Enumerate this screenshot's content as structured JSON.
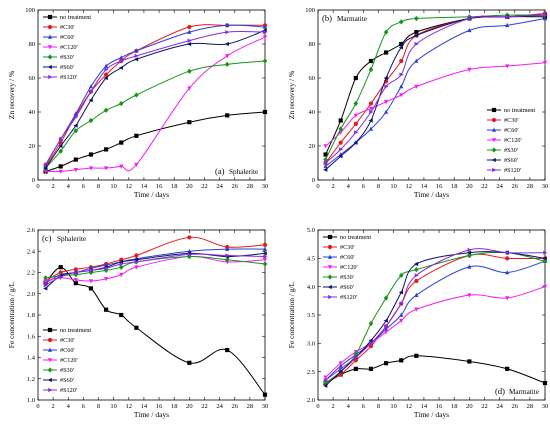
{
  "figure": {
    "panels": [
      {
        "id": "a",
        "label": "(a)",
        "mineral": "Sphalerite",
        "mineral_pos": "bottom-right",
        "legend_pos": "top-left"
      },
      {
        "id": "b",
        "label": "(b)",
        "mineral": "Marmatite",
        "mineral_pos": "top-left",
        "legend_pos": "bottom-right"
      },
      {
        "id": "c",
        "label": "(c)",
        "mineral": "Sphalerite",
        "mineral_pos": "top-left",
        "legend_pos": "bottom-left"
      },
      {
        "id": "d",
        "label": "(d)",
        "mineral": "Marmatite",
        "mineral_pos": "bottom-right",
        "legend_pos": "top-left"
      }
    ]
  },
  "chart_data": [
    {
      "type": "line",
      "panel": "(a)",
      "annotation": "Sphalerite",
      "xlabel": "Time / days",
      "ylabel": "Zn recovery / %",
      "xlim": [
        0,
        30
      ],
      "ylim": [
        0,
        100
      ],
      "xticks": [
        0,
        2,
        4,
        6,
        8,
        10,
        12,
        14,
        16,
        18,
        20,
        22,
        24,
        26,
        28,
        30
      ],
      "yticks": [
        0,
        20,
        40,
        60,
        80,
        100
      ],
      "legend_position": "top-left",
      "series": [
        {
          "name": "no treatment",
          "color": "#000000",
          "marker": "square",
          "x": [
            1,
            3,
            5,
            7,
            9,
            11,
            13,
            20,
            25,
            30
          ],
          "y": [
            5,
            8,
            12,
            15,
            18,
            22,
            26,
            34,
            38,
            40
          ]
        },
        {
          "name": "#C30'",
          "color": "#e41a1c",
          "marker": "circle",
          "x": [
            1,
            3,
            5,
            7,
            9,
            11,
            13,
            20,
            25,
            30
          ],
          "y": [
            8,
            22,
            38,
            52,
            62,
            70,
            76,
            90,
            91,
            91
          ]
        },
        {
          "name": "#C60'",
          "color": "#2a3fd6",
          "marker": "triangle-up",
          "x": [
            1,
            3,
            5,
            7,
            9,
            11,
            13,
            20,
            25,
            30
          ],
          "y": [
            9,
            24,
            39,
            55,
            67,
            72,
            76,
            87,
            91,
            90
          ]
        },
        {
          "name": "#C120'",
          "color": "#f21df2",
          "marker": "triangle-down",
          "x": [
            1,
            3,
            5,
            7,
            9,
            11,
            13,
            20,
            25,
            30
          ],
          "y": [
            5,
            5,
            6,
            7,
            7,
            8,
            9,
            54,
            73,
            84
          ]
        },
        {
          "name": "#S30'",
          "color": "#16941a",
          "marker": "diamond",
          "x": [
            1,
            3,
            5,
            7,
            9,
            11,
            13,
            20,
            25,
            30
          ],
          "y": [
            7,
            17,
            29,
            35,
            41,
            45,
            50,
            64,
            68,
            70
          ]
        },
        {
          "name": "#S60'",
          "color": "#0d1466",
          "marker": "triangle-left",
          "x": [
            1,
            3,
            5,
            7,
            9,
            11,
            13,
            20,
            25,
            30
          ],
          "y": [
            7,
            20,
            32,
            47,
            60,
            66,
            71,
            80,
            80,
            88
          ]
        },
        {
          "name": "#S120'",
          "color": "#8a2be2",
          "marker": "triangle-right",
          "x": [
            1,
            3,
            5,
            7,
            9,
            11,
            13,
            20,
            25,
            30
          ],
          "y": [
            9,
            24,
            37,
            52,
            65,
            70,
            73,
            82,
            87,
            87
          ]
        }
      ]
    },
    {
      "type": "line",
      "panel": "(b)",
      "annotation": "Marmatite",
      "xlabel": "Time / days",
      "ylabel": "Zn recovery / %",
      "xlim": [
        0,
        30
      ],
      "ylim": [
        0,
        100
      ],
      "xticks": [
        0,
        2,
        4,
        6,
        8,
        10,
        12,
        14,
        16,
        18,
        20,
        22,
        24,
        26,
        28,
        30
      ],
      "yticks": [
        0,
        20,
        40,
        60,
        80,
        100
      ],
      "legend_position": "bottom-right",
      "series": [
        {
          "name": "no treatment",
          "color": "#000000",
          "marker": "square",
          "x": [
            1,
            3,
            5,
            7,
            9,
            11,
            13,
            20,
            25,
            30
          ],
          "y": [
            15,
            35,
            60,
            70,
            75,
            80,
            87,
            95,
            96,
            96
          ]
        },
        {
          "name": "#C30'",
          "color": "#e41a1c",
          "marker": "circle",
          "x": [
            1,
            3,
            5,
            7,
            9,
            11,
            13,
            20,
            25,
            30
          ],
          "y": [
            10,
            22,
            33,
            45,
            58,
            70,
            85,
            95,
            96,
            98
          ]
        },
        {
          "name": "#C60'",
          "color": "#2a3fd6",
          "marker": "triangle-up",
          "x": [
            1,
            3,
            5,
            7,
            9,
            11,
            13,
            20,
            25,
            30
          ],
          "y": [
            8,
            15,
            22,
            30,
            40,
            55,
            70,
            88,
            91,
            95
          ]
        },
        {
          "name": "#C120'",
          "color": "#f21df2",
          "marker": "triangle-down",
          "x": [
            1,
            3,
            5,
            7,
            9,
            11,
            13,
            20,
            25,
            30
          ],
          "y": [
            20,
            28,
            38,
            42,
            46,
            50,
            55,
            65,
            67,
            69
          ]
        },
        {
          "name": "#S30'",
          "color": "#16941a",
          "marker": "diamond",
          "x": [
            1,
            3,
            5,
            7,
            9,
            11,
            13,
            20,
            25,
            30
          ],
          "y": [
            12,
            30,
            45,
            65,
            87,
            93,
            95,
            96,
            97,
            97
          ]
        },
        {
          "name": "#S60'",
          "color": "#0d1466",
          "marker": "triangle-left",
          "x": [
            1,
            3,
            5,
            7,
            9,
            11,
            13,
            20,
            25,
            30
          ],
          "y": [
            6,
            14,
            22,
            35,
            60,
            78,
            85,
            95,
            96,
            97
          ]
        },
        {
          "name": "#S120'",
          "color": "#8a2be2",
          "marker": "triangle-right",
          "x": [
            1,
            3,
            5,
            7,
            9,
            11,
            13,
            20,
            25,
            30
          ],
          "y": [
            10,
            18,
            28,
            40,
            55,
            62,
            80,
            95,
            96,
            97
          ]
        }
      ]
    },
    {
      "type": "line",
      "panel": "(c)",
      "annotation": "Sphalerite",
      "xlabel": "Time / days",
      "ylabel": "Fe concentration / g/L",
      "xlim": [
        0,
        30
      ],
      "ylim": [
        1.0,
        2.6
      ],
      "xticks": [
        0,
        2,
        4,
        6,
        8,
        10,
        12,
        14,
        16,
        18,
        20,
        22,
        24,
        26,
        28,
        30
      ],
      "yticks": [
        1.0,
        1.2,
        1.4,
        1.6,
        1.8,
        2.0,
        2.2,
        2.4,
        2.6
      ],
      "legend_position": "bottom-left",
      "series": [
        {
          "name": "no treatment",
          "color": "#000000",
          "marker": "square",
          "x": [
            1,
            3,
            5,
            7,
            9,
            11,
            13,
            20,
            25,
            30
          ],
          "y": [
            2.1,
            2.25,
            2.1,
            2.05,
            1.85,
            1.8,
            1.68,
            1.35,
            1.47,
            1.05
          ]
        },
        {
          "name": "#C30'",
          "color": "#e41a1c",
          "marker": "circle",
          "x": [
            1,
            3,
            5,
            7,
            9,
            11,
            13,
            20,
            25,
            30
          ],
          "y": [
            2.12,
            2.2,
            2.23,
            2.25,
            2.28,
            2.32,
            2.36,
            2.53,
            2.44,
            2.46
          ]
        },
        {
          "name": "#C60'",
          "color": "#2a3fd6",
          "marker": "triangle-up",
          "x": [
            1,
            3,
            5,
            7,
            9,
            11,
            13,
            20,
            25,
            30
          ],
          "y": [
            2.1,
            2.18,
            2.2,
            2.24,
            2.27,
            2.3,
            2.33,
            2.4,
            2.42,
            2.42
          ]
        },
        {
          "name": "#C120'",
          "color": "#f21df2",
          "marker": "triangle-down",
          "x": [
            1,
            3,
            5,
            7,
            9,
            11,
            13,
            20,
            25,
            30
          ],
          "y": [
            2.12,
            2.15,
            2.13,
            2.12,
            2.14,
            2.18,
            2.25,
            2.35,
            2.3,
            2.32
          ]
        },
        {
          "name": "#S30'",
          "color": "#16941a",
          "marker": "diamond",
          "x": [
            1,
            3,
            5,
            7,
            9,
            11,
            13,
            20,
            25,
            30
          ],
          "y": [
            2.15,
            2.17,
            2.18,
            2.2,
            2.22,
            2.25,
            2.3,
            2.35,
            2.32,
            2.28
          ]
        },
        {
          "name": "#S60'",
          "color": "#0d1466",
          "marker": "triangle-left",
          "x": [
            1,
            3,
            5,
            7,
            9,
            11,
            13,
            20,
            25,
            30
          ],
          "y": [
            2.05,
            2.17,
            2.2,
            2.22,
            2.25,
            2.3,
            2.32,
            2.38,
            2.35,
            2.38
          ]
        },
        {
          "name": "#S120'",
          "color": "#8a2be2",
          "marker": "triangle-right",
          "x": [
            1,
            3,
            5,
            7,
            9,
            11,
            13,
            20,
            25,
            30
          ],
          "y": [
            2.08,
            2.16,
            2.2,
            2.22,
            2.24,
            2.28,
            2.3,
            2.37,
            2.36,
            2.35
          ]
        }
      ]
    },
    {
      "type": "line",
      "panel": "(d)",
      "annotation": "Marmatite",
      "xlabel": "Time / days",
      "ylabel": "Fe concentration / g/L",
      "xlim": [
        0,
        30
      ],
      "ylim": [
        2.0,
        5.0
      ],
      "xticks": [
        0,
        2,
        4,
        6,
        8,
        10,
        12,
        14,
        16,
        18,
        20,
        22,
        24,
        26,
        28,
        30
      ],
      "yticks": [
        2.0,
        2.5,
        3.0,
        3.5,
        4.0,
        4.5,
        5.0
      ],
      "legend_position": "top-left",
      "series": [
        {
          "name": "no treatment",
          "color": "#000000",
          "marker": "square",
          "x": [
            1,
            3,
            5,
            7,
            9,
            11,
            13,
            20,
            25,
            30
          ],
          "y": [
            2.3,
            2.45,
            2.55,
            2.55,
            2.65,
            2.7,
            2.78,
            2.68,
            2.55,
            2.3
          ]
        },
        {
          "name": "#C30'",
          "color": "#e41a1c",
          "marker": "circle",
          "x": [
            1,
            3,
            5,
            7,
            9,
            11,
            13,
            20,
            25,
            30
          ],
          "y": [
            2.3,
            2.45,
            2.7,
            2.95,
            3.3,
            3.7,
            4.1,
            4.55,
            4.5,
            4.5
          ]
        },
        {
          "name": "#C60'",
          "color": "#2a3fd6",
          "marker": "triangle-up",
          "x": [
            1,
            3,
            5,
            7,
            9,
            11,
            13,
            20,
            25,
            30
          ],
          "y": [
            2.35,
            2.6,
            2.8,
            3.0,
            3.25,
            3.5,
            3.85,
            4.35,
            4.25,
            4.45
          ]
        },
        {
          "name": "#C120'",
          "color": "#f21df2",
          "marker": "triangle-down",
          "x": [
            1,
            3,
            5,
            7,
            9,
            11,
            13,
            20,
            25,
            30
          ],
          "y": [
            2.4,
            2.65,
            2.85,
            3.0,
            3.2,
            3.4,
            3.6,
            3.85,
            3.8,
            4.0
          ]
        },
        {
          "name": "#S30'",
          "color": "#16941a",
          "marker": "diamond",
          "x": [
            1,
            3,
            5,
            7,
            9,
            11,
            13,
            20,
            25,
            30
          ],
          "y": [
            2.3,
            2.5,
            2.8,
            3.35,
            3.8,
            4.2,
            4.3,
            4.55,
            4.6,
            4.45
          ]
        },
        {
          "name": "#S60'",
          "color": "#0d1466",
          "marker": "triangle-left",
          "x": [
            1,
            3,
            5,
            7,
            9,
            11,
            13,
            20,
            25,
            30
          ],
          "y": [
            2.25,
            2.5,
            2.75,
            3.05,
            3.4,
            3.9,
            4.4,
            4.6,
            4.6,
            4.5
          ]
        },
        {
          "name": "#S120'",
          "color": "#8a2be2",
          "marker": "triangle-right",
          "x": [
            1,
            3,
            5,
            7,
            9,
            11,
            13,
            20,
            25,
            30
          ],
          "y": [
            2.35,
            2.55,
            2.75,
            3.0,
            3.3,
            3.7,
            4.2,
            4.65,
            4.6,
            4.6
          ]
        }
      ]
    }
  ]
}
